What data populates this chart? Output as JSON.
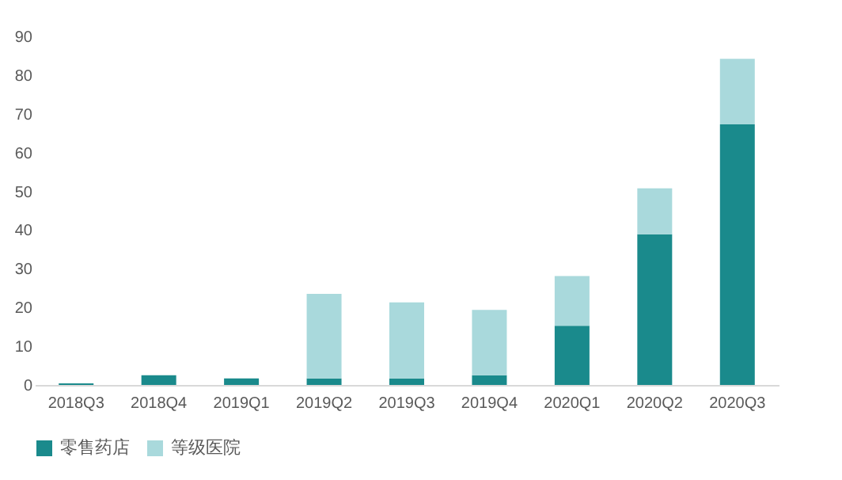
{
  "chart_data": {
    "type": "bar",
    "stacked": true,
    "categories": [
      "2018Q3",
      "2018Q4",
      "2019Q1",
      "2019Q2",
      "2019Q3",
      "2019Q4",
      "2020Q1",
      "2020Q2",
      "2020Q3"
    ],
    "series": [
      {
        "name": "零售药店",
        "color": "#1a8a8c",
        "values": [
          0.4,
          2.5,
          1.7,
          1.7,
          1.7,
          2.5,
          15.3,
          38.9,
          67.3
        ]
      },
      {
        "name": "等级医院",
        "color": "#a9d9dc",
        "values": [
          0,
          0,
          0,
          21.8,
          19.6,
          16.9,
          12.8,
          11.9,
          16.9
        ]
      }
    ],
    "ylim": [
      0,
      90
    ],
    "yticks": [
      0,
      10,
      20,
      30,
      40,
      50,
      60,
      70,
      80,
      90
    ],
    "legend": "bottom"
  }
}
